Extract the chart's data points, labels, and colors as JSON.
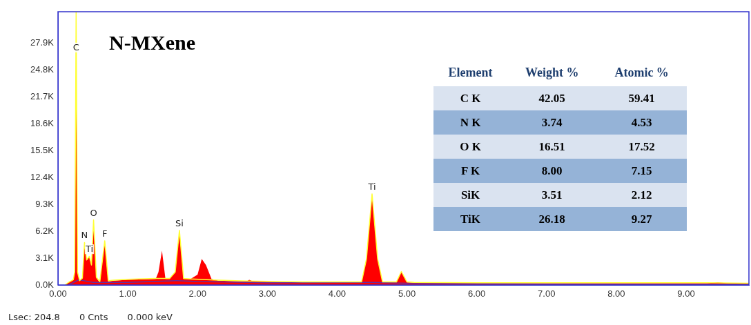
{
  "chart_data": [
    {
      "type": "area",
      "title": "N-MXene",
      "legend": false,
      "grid": false,
      "marker": "none",
      "xlim": [
        0,
        9.9
      ],
      "ylim": [
        0,
        31500
      ],
      "xticks": [
        {
          "value": 0,
          "label": "0.00"
        },
        {
          "value": 1,
          "label": "1.00"
        },
        {
          "value": 2,
          "label": "2.00"
        },
        {
          "value": 3,
          "label": "3.00"
        },
        {
          "value": 4,
          "label": "4.00"
        },
        {
          "value": 5,
          "label": "5.00"
        },
        {
          "value": 6,
          "label": "6.00"
        },
        {
          "value": 7,
          "label": "7.00"
        },
        {
          "value": 8,
          "label": "8.00"
        },
        {
          "value": 9,
          "label": "9.00"
        }
      ],
      "yticks": [
        {
          "value": 0,
          "label": "0.0K"
        },
        {
          "value": 3100,
          "label": "3.1K"
        },
        {
          "value": 6200,
          "label": "6.2K"
        },
        {
          "value": 9300,
          "label": "9.3K"
        },
        {
          "value": 12400,
          "label": "12.4K"
        },
        {
          "value": 15500,
          "label": "15.5K"
        },
        {
          "value": 18600,
          "label": "18.6K"
        },
        {
          "value": 21700,
          "label": "21.7K"
        },
        {
          "value": 24800,
          "label": "24.8K"
        },
        {
          "value": 27900,
          "label": "27.9K"
        }
      ],
      "series": [
        {
          "type": "area",
          "color": "#ff0000",
          "x": [
            0.1,
            0.15,
            0.22,
            0.24,
            0.26,
            0.28,
            0.31,
            0.35,
            0.38,
            0.41,
            0.45,
            0.48,
            0.51,
            0.55,
            0.6,
            0.67,
            0.72,
            0.8,
            1.0,
            1.4,
            1.44,
            1.49,
            1.54,
            1.6,
            1.68,
            1.74,
            1.8,
            1.9,
            2.0,
            2.06,
            2.12,
            2.2,
            2.3,
            2.7,
            2.74,
            2.8,
            3.5,
            4.35,
            4.42,
            4.5,
            4.58,
            4.65,
            4.85,
            4.92,
            5.0,
            5.1,
            6.0,
            7.0,
            8.0,
            9.3,
            9.45,
            9.6,
            9.9
          ],
          "values": [
            0,
            300,
            600,
            1500,
            26500,
            1500,
            500,
            800,
            4850,
            2800,
            3250,
            2200,
            7400,
            800,
            300,
            5000,
            400,
            500,
            600,
            700,
            1500,
            3950,
            700,
            700,
            1500,
            6200,
            700,
            700,
            1200,
            3000,
            2300,
            700,
            500,
            400,
            600,
            400,
            300,
            300,
            3000,
            10400,
            3000,
            300,
            300,
            1500,
            300,
            250,
            200,
            200,
            200,
            200,
            300,
            200,
            150
          ]
        },
        {
          "type": "line",
          "color": "#ffff33",
          "x": [
            0.1,
            0.15,
            0.22,
            0.24,
            0.26,
            0.28,
            0.31,
            0.35,
            0.38,
            0.41,
            0.45,
            0.48,
            0.51,
            0.55,
            0.6,
            0.67,
            0.72,
            0.8,
            1.0,
            1.4,
            1.6,
            1.68,
            1.74,
            1.8,
            1.9,
            2.3,
            2.7,
            3.5,
            4.35,
            4.42,
            4.5,
            4.58,
            4.65,
            4.85,
            4.92,
            5.0,
            5.1,
            6.0,
            7.0,
            8.0,
            9.3,
            9.9
          ],
          "values": [
            0,
            300,
            600,
            1500,
            31500,
            1500,
            500,
            800,
            4900,
            2900,
            3300,
            2300,
            7500,
            900,
            400,
            5100,
            500,
            550,
            650,
            750,
            750,
            1500,
            6300,
            750,
            700,
            550,
            450,
            350,
            350,
            3000,
            10500,
            3000,
            350,
            350,
            1550,
            350,
            300,
            250,
            250,
            250,
            250,
            200
          ]
        },
        {
          "type": "line",
          "color": "#6a2c9c",
          "x": [
            0.15,
            0.3,
            0.5,
            1.0,
            1.7,
            2.0,
            3.0,
            4.5,
            5.0,
            7.0,
            9.9
          ],
          "values": [
            0,
            600,
            300,
            300,
            500,
            400,
            250,
            300,
            200,
            100,
            50
          ]
        }
      ],
      "annotations": [
        {
          "text": "C",
          "x": 0.26,
          "y": 26500
        },
        {
          "text": "N",
          "x": 0.38,
          "y": 4850
        },
        {
          "text": "O",
          "x": 0.51,
          "y": 7400
        },
        {
          "text": "Ti",
          "x": 0.45,
          "y": 3250
        },
        {
          "text": "F",
          "x": 0.67,
          "y": 5000
        },
        {
          "text": "Si",
          "x": 1.74,
          "y": 6200
        },
        {
          "text": "Ti",
          "x": 4.5,
          "y": 10400
        },
        "Lsec: 204.8",
        "0 Cnts",
        "0.000 keV"
      ]
    },
    {
      "type": "other",
      "ylabel": "Element",
      "categories": [
        "C K",
        "N K",
        "O K",
        "F K",
        "SiK",
        "TiK"
      ],
      "series": [
        {
          "name": "Weight %",
          "colors": [
            "#dae3f0",
            "#95b3d7",
            "#dae3f0",
            "#95b3d7",
            "#dae3f0",
            "#95b3d7"
          ],
          "values": [
            42.05,
            3.74,
            16.51,
            8.0,
            3.51,
            26.18
          ],
          "value_labels": [
            "42.05",
            "3.74",
            "16.51",
            "8.00",
            "3.51",
            "26.18"
          ]
        },
        {
          "name": "Atomic %",
          "colors": [
            "#dae3f0",
            "#95b3d7",
            "#dae3f0",
            "#95b3d7",
            "#dae3f0",
            "#95b3d7"
          ],
          "values": [
            59.41,
            4.53,
            17.52,
            7.15,
            2.12,
            9.27
          ],
          "value_labels": [
            "59.41",
            "4.53",
            "17.52",
            "7.15",
            "2.12",
            "9.27"
          ]
        }
      ]
    }
  ]
}
